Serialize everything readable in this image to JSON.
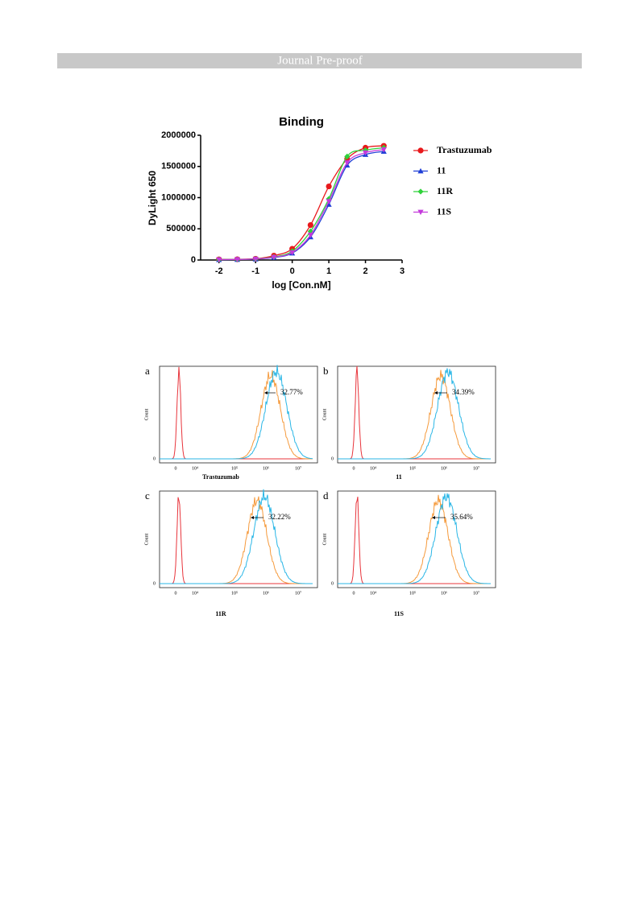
{
  "header": {
    "title": "Journal Pre-proof"
  },
  "chart_data": {
    "type": "line",
    "title": "Binding",
    "x_label": "log [Con.nM]",
    "y_label": "DyLight 650",
    "x": [
      -2,
      -1.5,
      -1,
      -0.5,
      0,
      0.5,
      1,
      1.5,
      2,
      2.5
    ],
    "series": [
      {
        "name": "Trastuzumab",
        "color": "#e8191c",
        "marker": "circle",
        "values": [
          10000,
          12000,
          20000,
          70000,
          180000,
          560000,
          1180000,
          1620000,
          1800000,
          1830000
        ]
      },
      {
        "name": "11",
        "color": "#1f3fd6",
        "marker": "triangle",
        "values": [
          5000,
          8000,
          15000,
          40000,
          110000,
          370000,
          890000,
          1520000,
          1690000,
          1740000
        ]
      },
      {
        "name": "11R",
        "color": "#2fd23a",
        "marker": "diamond",
        "values": [
          8000,
          10000,
          18000,
          50000,
          140000,
          460000,
          980000,
          1660000,
          1760000,
          1800000
        ]
      },
      {
        "name": "11S",
        "color": "#c43adb",
        "marker": "triangle-down",
        "values": [
          6000,
          9000,
          16000,
          45000,
          120000,
          400000,
          940000,
          1560000,
          1720000,
          1770000
        ]
      }
    ],
    "xlim": [
      -2.5,
      3
    ],
    "xticks": [
      -2,
      -1,
      0,
      1,
      2,
      3
    ],
    "ylim": [
      0,
      2000000
    ],
    "yticks": [
      0,
      500000,
      1000000,
      1500000,
      2000000
    ],
    "legend": "right"
  },
  "panel_axis": {
    "y_label": "Count",
    "y_zero": "0",
    "x_ticks": [
      "0",
      "10⁴",
      "10⁵",
      "10⁶",
      "10⁷"
    ]
  },
  "panels": [
    {
      "letter": "a",
      "name": "Trastuzumab",
      "percent": "32.77%"
    },
    {
      "letter": "b",
      "name": "11",
      "percent": "34.39%"
    },
    {
      "letter": "c",
      "name": "11R",
      "percent": "32.22%"
    },
    {
      "letter": "d",
      "name": "11S",
      "percent": "35.64%"
    }
  ]
}
